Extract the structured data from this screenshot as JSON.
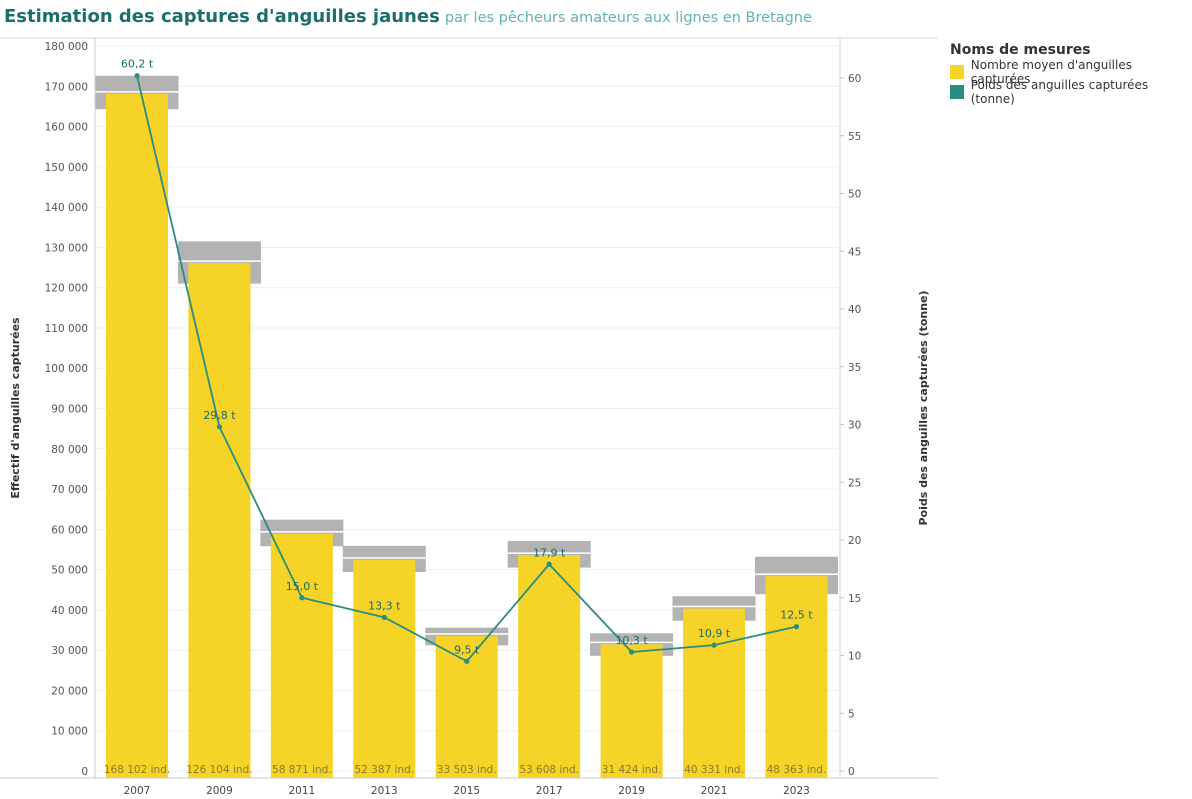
{
  "title": {
    "main": "Estimation des captures d'anguilles jaunes",
    "sub": "par les pêcheurs amateurs aux lignes en Bretagne"
  },
  "legend": {
    "title": "Noms de mesures",
    "items": [
      {
        "label": "Nombre moyen d'anguilles capturées",
        "color": "#f5d327"
      },
      {
        "label": "Poids des anguilles capturées (tonne)",
        "color": "#2a8c82"
      }
    ]
  },
  "chart_data": {
    "type": "bar",
    "categories": [
      "2007",
      "2009",
      "2011",
      "2013",
      "2015",
      "2017",
      "2019",
      "2021",
      "2023"
    ],
    "ylabel": "Effectif d'anguilles capturées",
    "y2label": "Poids des anguilles capturées (tonne)",
    "ylim": [
      0,
      180000
    ],
    "y2lim": [
      0,
      63
    ],
    "yticks": [
      {
        "v": 0,
        "label": "0"
      },
      {
        "v": 10000,
        "label": "10 000"
      },
      {
        "v": 20000,
        "label": "20 000"
      },
      {
        "v": 30000,
        "label": "30 000"
      },
      {
        "v": 40000,
        "label": "40 000"
      },
      {
        "v": 50000,
        "label": "50 000"
      },
      {
        "v": 60000,
        "label": "60 000"
      },
      {
        "v": 70000,
        "label": "70 000"
      },
      {
        "v": 80000,
        "label": "80 000"
      },
      {
        "v": 90000,
        "label": "90 000"
      },
      {
        "v": 100000,
        "label": "100 000"
      },
      {
        "v": 110000,
        "label": "110 000"
      },
      {
        "v": 120000,
        "label": "120 000"
      },
      {
        "v": 130000,
        "label": "130 000"
      },
      {
        "v": 140000,
        "label": "140 000"
      },
      {
        "v": 150000,
        "label": "150 000"
      },
      {
        "v": 160000,
        "label": "160 000"
      },
      {
        "v": 170000,
        "label": "170 000"
      },
      {
        "v": 180000,
        "label": "180 000"
      }
    ],
    "y2ticks": [
      {
        "v": 0,
        "label": "0"
      },
      {
        "v": 5,
        "label": "5"
      },
      {
        "v": 10,
        "label": "10"
      },
      {
        "v": 15,
        "label": "15"
      },
      {
        "v": 20,
        "label": "20"
      },
      {
        "v": 25,
        "label": "25"
      },
      {
        "v": 30,
        "label": "30"
      },
      {
        "v": 35,
        "label": "35"
      },
      {
        "v": 40,
        "label": "40"
      },
      {
        "v": 45,
        "label": "45"
      },
      {
        "v": 50,
        "label": "50"
      },
      {
        "v": 55,
        "label": "55"
      },
      {
        "v": 60,
        "label": "60"
      }
    ],
    "series": [
      {
        "name": "Nombre moyen d'anguilles capturées",
        "values": [
          168102,
          126104,
          58871,
          52387,
          33503,
          53608,
          31424,
          40331,
          48363
        ],
        "labels": [
          "168 102 ind.",
          "126 104 ind.",
          "58 871 ind.",
          "52 387 ind.",
          "33 503 ind.",
          "53 608 ind.",
          "31 424 ind.",
          "40 331 ind.",
          "48 363 ind."
        ],
        "interval_low": [
          164300,
          121000,
          55800,
          49400,
          31200,
          50500,
          28600,
          37300,
          43900
        ],
        "interval_high": [
          172600,
          131500,
          62400,
          55900,
          35600,
          57100,
          34200,
          43400,
          53200
        ]
      },
      {
        "name": "Poids des anguilles capturées (tonne)",
        "axis": "right",
        "values": [
          60.2,
          29.8,
          15.0,
          13.3,
          9.5,
          17.9,
          10.3,
          10.9,
          12.5
        ],
        "labels": [
          "60,2 t",
          "29,8 t",
          "15,0 t",
          "13,3 t",
          "9,5 t",
          "17,9 t",
          "10,3 t",
          "10,9 t",
          "12,5 t"
        ]
      }
    ]
  }
}
